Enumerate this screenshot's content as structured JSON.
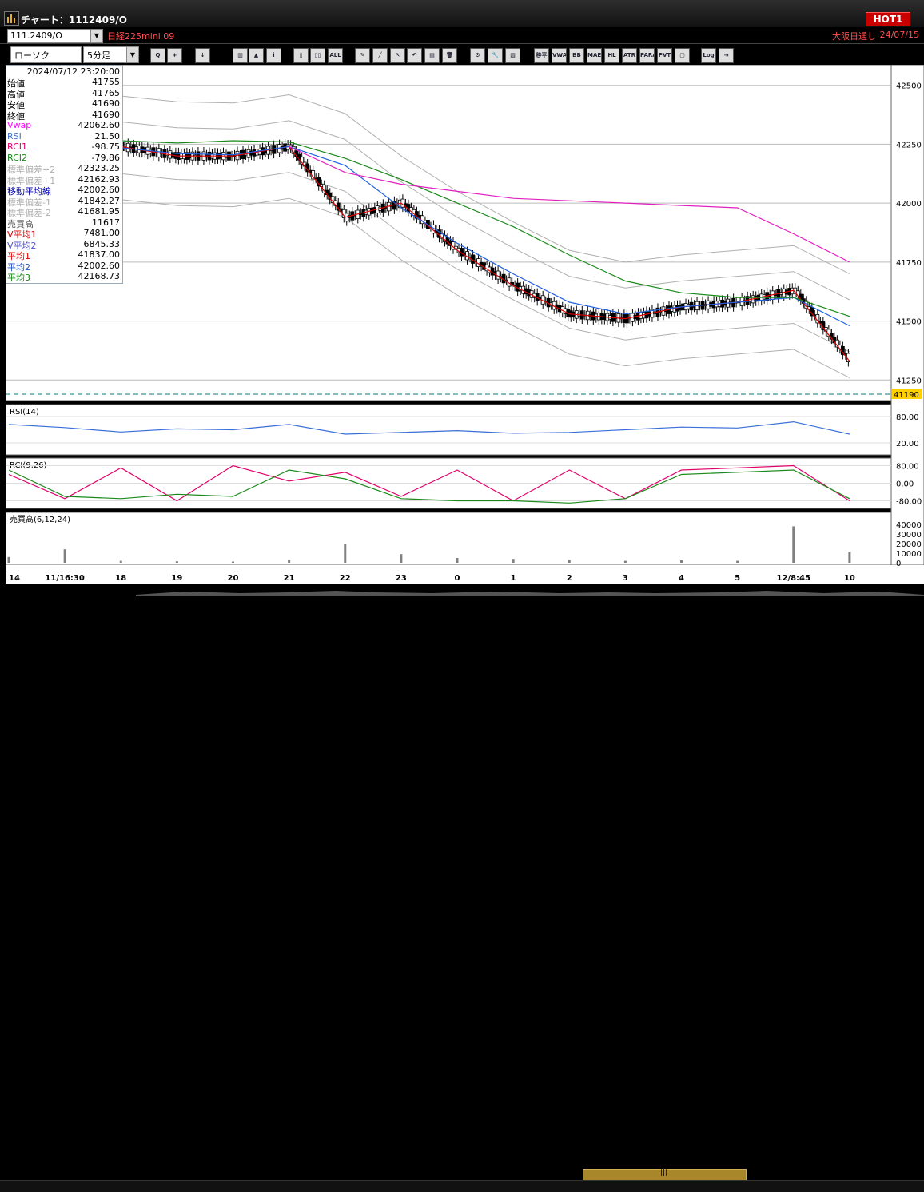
{
  "window": {
    "title": "チャート：1112409/O",
    "hot_label": "HOT1"
  },
  "symbol_bar": {
    "symbol_code": "111.2409/O",
    "symbol_name": "日経225mini 09",
    "exchange_label": "大阪日通し",
    "date": "24/07/15"
  },
  "toolbar": {
    "chart_type": "ローソク",
    "interval": "5分足",
    "buttons": [
      {
        "icon": "zoom-icon",
        "text": "Q"
      },
      {
        "icon": "crosshair-icon",
        "text": "+"
      },
      {
        "icon": "arrow-down-icon",
        "text": "↓"
      },
      {
        "icon": "bar-chart-icon",
        "text": "▥"
      },
      {
        "icon": "candle-up-icon",
        "text": "▲"
      },
      {
        "icon": "info-icon",
        "text": "i"
      },
      {
        "icon": "candle-icon",
        "text": "▯"
      },
      {
        "icon": "candles-icon",
        "text": "▯▯"
      },
      {
        "icon": "all-icon",
        "text": "ALL"
      },
      {
        "icon": "pencil-icon",
        "text": "✎"
      },
      {
        "icon": "line-icon",
        "text": "╱"
      },
      {
        "icon": "pointer-icon",
        "text": "↖"
      },
      {
        "icon": "undo-icon",
        "text": "↶"
      },
      {
        "icon": "copy-icon",
        "text": "▤"
      },
      {
        "icon": "trash-icon",
        "text": "🗑"
      },
      {
        "icon": "settings-icon",
        "text": "⚙"
      },
      {
        "icon": "wrench-icon",
        "text": "🔧"
      },
      {
        "icon": "color-icon",
        "text": "▨"
      },
      {
        "icon": "indicator-icon",
        "text": "移平"
      },
      {
        "icon": "indicator-icon",
        "text": "VWAP"
      },
      {
        "icon": "indicator-icon",
        "text": "BB"
      },
      {
        "icon": "indicator-icon",
        "text": "MAE"
      },
      {
        "icon": "indicator-icon",
        "text": "HL"
      },
      {
        "icon": "indicator-icon",
        "text": "ATR"
      },
      {
        "icon": "indicator-icon",
        "text": "PARA"
      },
      {
        "icon": "indicator-icon",
        "text": "PVT"
      },
      {
        "icon": "window-icon",
        "text": "▢"
      },
      {
        "icon": "log-icon",
        "text": "Log"
      },
      {
        "icon": "exit-icon",
        "text": "⇥"
      }
    ]
  },
  "data_panel": {
    "datetime": "2024/07/12  23:20:00",
    "rows": [
      {
        "label": "始値",
        "value": "41755",
        "color": "#000000"
      },
      {
        "label": "高値",
        "value": "41765",
        "color": "#000000"
      },
      {
        "label": "安値",
        "value": "41690",
        "color": "#000000"
      },
      {
        "label": "終値",
        "value": "41690",
        "color": "#000000"
      },
      {
        "label": "Vwap",
        "value": "42062.60",
        "color": "#ff00ff"
      },
      {
        "label": "RSI",
        "value": "21.50",
        "color": "#3a6fd8"
      },
      {
        "label": "RCI1",
        "value": "-98.75",
        "color": "#e0006a"
      },
      {
        "label": "RCI2",
        "value": "-79.86",
        "color": "#1a8a1a"
      },
      {
        "label": "標準偏差+2",
        "value": "42323.25",
        "color": "#b0b0b0"
      },
      {
        "label": "標準偏差+1",
        "value": "42162.93",
        "color": "#b0b0b0"
      },
      {
        "label": "移動平均線",
        "value": "42002.60",
        "color": "#0000aa"
      },
      {
        "label": "標準偏差-1",
        "value": "41842.27",
        "color": "#b0b0b0"
      },
      {
        "label": "標準偏差-2",
        "value": "41681.95",
        "color": "#b0b0b0"
      },
      {
        "label": "売買高",
        "value": "11617",
        "color": "#555555"
      },
      {
        "label": "V平均1",
        "value": "7481.00",
        "color": "#e00000"
      },
      {
        "label": "V平均2",
        "value": "6845.33",
        "color": "#5050d0"
      },
      {
        "label": "平均1",
        "value": "41837.00",
        "color": "#e00000"
      },
      {
        "label": "平均2",
        "value": "42002.60",
        "color": "#2050c0"
      },
      {
        "label": "平均3",
        "value": "42168.73",
        "color": "#1a8a1a"
      }
    ]
  },
  "price_axis": {
    "ticks": [
      "42500",
      "42250",
      "42000",
      "41750",
      "41500",
      "41250"
    ],
    "current_price": "41190"
  },
  "rsi_panel": {
    "title": "RSI(14)",
    "ticks": [
      "80.00",
      "20.00"
    ]
  },
  "rci_panel": {
    "title": "RCI(9,26)",
    "ticks": [
      "80.00",
      "0.00",
      "-80.00"
    ]
  },
  "volume_panel": {
    "title": "売買高(6,12,24)",
    "ticks": [
      "40000",
      "30000",
      "20000",
      "10000",
      "0"
    ]
  },
  "time_axis": {
    "labels": [
      "14",
      "11/16:30",
      "18",
      "19",
      "20",
      "21",
      "22",
      "23",
      "0",
      "1",
      "2",
      "3",
      "4",
      "5",
      "12/8:45",
      "10"
    ]
  },
  "colors": {
    "background": "#ffffff",
    "bull_candle": "#ffffff",
    "bear_candle": "#000000",
    "avg1": "#e00000",
    "avg2": "#2060e0",
    "avg3": "#1a8a1a",
    "vwap": "#e020c0",
    "bands": "#b0b0b0",
    "rsi": "#3a6fd8",
    "rci1": "#e0006a",
    "rci2": "#1a8a1a",
    "volume": "#808080"
  },
  "chart_data": [
    {
      "type": "line",
      "title": "",
      "ylim": [
        41190,
        42560
      ],
      "x": [
        "14",
        "11/16:30",
        "18",
        "19",
        "20",
        "21",
        "22",
        "23",
        "0",
        "1",
        "2",
        "3",
        "4",
        "5",
        "12/8:45",
        "10"
      ],
      "series": [
        {
          "name": "平均1",
          "values": [
            42280,
            42235,
            42240,
            42200,
            42200,
            42240,
            41940,
            42000,
            41800,
            41650,
            41530,
            41510,
            41560,
            41580,
            41630,
            41330
          ]
        },
        {
          "name": "平均2",
          "values": [
            42270,
            42240,
            42235,
            42210,
            42205,
            42240,
            42160,
            41980,
            41830,
            41700,
            41580,
            41530,
            41560,
            41580,
            41600,
            41480
          ]
        },
        {
          "name": "平均3",
          "values": [
            42260,
            42260,
            42265,
            42255,
            42265,
            42260,
            42190,
            42100,
            42000,
            41900,
            41780,
            41670,
            41620,
            41600,
            41600,
            41520
          ]
        },
        {
          "name": "Vwap",
          "values": [
            null,
            null,
            null,
            null,
            null,
            42240,
            42130,
            42080,
            42050,
            42020,
            42010,
            42000,
            41990,
            41980,
            41870,
            41750
          ]
        }
      ]
    },
    {
      "type": "line",
      "title": "",
      "ylim": [
        0,
        100
      ],
      "x": [
        "14",
        "11/16:30",
        "18",
        "19",
        "20",
        "21",
        "22",
        "23",
        "0",
        "1",
        "2",
        "3",
        "4",
        "5",
        "12/8:45",
        "10"
      ],
      "series": [
        {
          "name": "RSI",
          "values": [
            62,
            55,
            45,
            52,
            50,
            62,
            40,
            44,
            48,
            42,
            44,
            50,
            56,
            54,
            68,
            40
          ]
        }
      ]
    },
    {
      "type": "line",
      "title": "",
      "ylim": [
        -100,
        100
      ],
      "x": [
        "14",
        "11/16:30",
        "18",
        "19",
        "20",
        "21",
        "22",
        "23",
        "0",
        "1",
        "2",
        "3",
        "4",
        "5",
        "12/8:45",
        "10"
      ],
      "series": [
        {
          "name": "RCI1",
          "values": [
            40,
            -70,
            70,
            -80,
            80,
            10,
            50,
            -60,
            60,
            -80,
            60,
            -70,
            60,
            70,
            80,
            -80
          ]
        },
        {
          "name": "RCI2",
          "values": [
            60,
            -60,
            -70,
            -50,
            -60,
            60,
            20,
            -70,
            -80,
            -80,
            -90,
            -70,
            40,
            50,
            60,
            -70
          ]
        }
      ]
    },
    {
      "type": "bar",
      "title": "",
      "ylim": [
        0,
        45000
      ],
      "categories": [
        "14",
        "11/16:30",
        "18",
        "19",
        "20",
        "21",
        "22",
        "23",
        "0",
        "1",
        "2",
        "3",
        "4",
        "5",
        "12/8:45",
        "10"
      ],
      "values": [
        6000,
        14000,
        2000,
        1500,
        1200,
        3000,
        20000,
        9000,
        5000,
        4000,
        3000,
        2000,
        2500,
        2000,
        38000,
        11617
      ]
    }
  ]
}
